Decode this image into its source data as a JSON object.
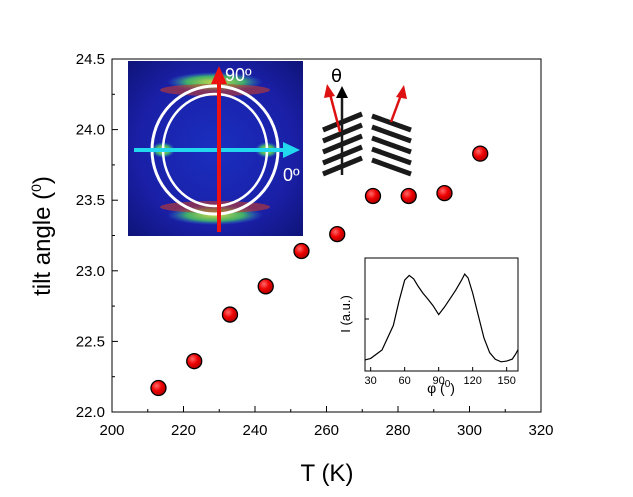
{
  "chart_data": [
    {
      "type": "scatter",
      "xlabel": "T (K)",
      "ylabel": "tilt angle (0)",
      "ylabel_text": "tilt angle (",
      "ylabel_sup": "0",
      "ylabel_close": ")",
      "xlim": [
        200,
        320
      ],
      "ylim": [
        22.0,
        24.5
      ],
      "xticks": [
        "200",
        "220",
        "240",
        "260",
        "280",
        "300",
        "320"
      ],
      "yticks": [
        "22.0",
        "22.5",
        "23.0",
        "23.5",
        "24.0",
        "24.5"
      ],
      "grid": false,
      "marker_color": "#ee0000",
      "series": [
        {
          "x": [
            213,
            223,
            233,
            243,
            253,
            263,
            273,
            283,
            293,
            303
          ],
          "y": [
            22.17,
            22.36,
            22.69,
            22.89,
            23.14,
            23.26,
            23.53,
            23.53,
            23.55,
            23.83
          ]
        }
      ]
    },
    {
      "type": "line",
      "inset": true,
      "xlabel": "φ (0)",
      "xlabel_text": "φ (",
      "xlabel_sup": "0",
      "xlabel_close": ")",
      "ylabel": "I  (a.u.)",
      "xlim": [
        25,
        160
      ],
      "xticks": [
        "30",
        "60",
        "90",
        "120",
        "150"
      ],
      "series": [
        {
          "x": [
            25,
            30,
            40,
            50,
            55,
            60,
            64,
            68,
            72,
            76,
            80,
            85,
            90,
            95,
            100,
            105,
            110,
            113,
            116,
            120,
            125,
            130,
            135,
            140,
            145,
            150,
            155,
            158,
            160
          ],
          "y": [
            0.05,
            0.06,
            0.14,
            0.38,
            0.62,
            0.83,
            0.88,
            0.85,
            0.78,
            0.72,
            0.67,
            0.6,
            0.51,
            0.58,
            0.66,
            0.74,
            0.83,
            0.89,
            0.85,
            0.7,
            0.48,
            0.26,
            0.12,
            0.06,
            0.04,
            0.05,
            0.07,
            0.12,
            0.16
          ]
        }
      ]
    }
  ],
  "diffraction_inset": {
    "angle_90": "90º",
    "angle_0": "0º",
    "colors": {
      "background": "#1e22a8",
      "ring": "#ffffff",
      "vertical_arrow": "#ee1111",
      "horizontal_arrow": "#22d8ee"
    }
  },
  "schematic": {
    "theta_symbol": "θ",
    "colors": {
      "layers": "#1a1a1a",
      "normal_arrow": "#dd1111",
      "reference_arrow": "#000000"
    }
  }
}
